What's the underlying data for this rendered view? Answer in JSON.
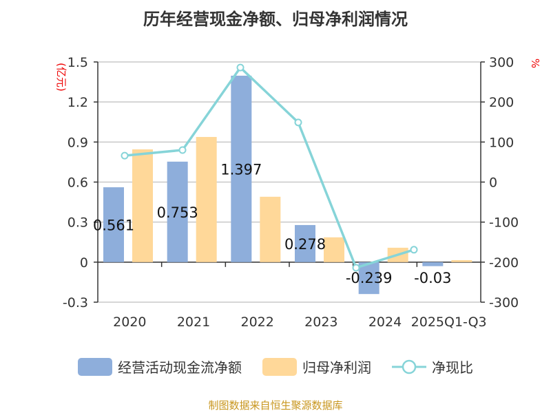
{
  "chart_data": {
    "type": "bar",
    "title": "历年经营现金净额、归母净利润情况",
    "categories": [
      "2020",
      "2021",
      "2022",
      "2023",
      "2024",
      "2025Q1-Q3"
    ],
    "left_axis": {
      "label": "(亿元)",
      "ylim": [
        -0.3,
        1.5
      ],
      "ticks": [
        "-0.3",
        "0",
        "0.3",
        "0.6",
        "0.9",
        "1.2",
        "1.5"
      ]
    },
    "right_axis": {
      "label": "%",
      "ylim": [
        -300,
        300
      ],
      "ticks": [
        "-300",
        "-200",
        "-100",
        "0",
        "100",
        "200",
        "300"
      ]
    },
    "grid": true,
    "legend_position": "bottom",
    "series": [
      {
        "name": "经营活动现金流净额",
        "type": "bar",
        "axis": "left",
        "color": "#8eaedb",
        "values": [
          0.561,
          0.753,
          1.397,
          0.278,
          -0.239,
          -0.03
        ],
        "labels": [
          "0.561",
          "0.753",
          "1.397",
          "0.278",
          "-0.239",
          "-0.03"
        ]
      },
      {
        "name": "归母净利润",
        "type": "bar",
        "axis": "left",
        "color": "#ffd899",
        "values": [
          0.845,
          0.938,
          0.49,
          0.186,
          0.108,
          0.015
        ]
      },
      {
        "name": "净现比",
        "type": "line",
        "axis": "right",
        "color": "#86d4d8",
        "values": [
          66,
          80,
          286,
          149,
          -214,
          -169
        ]
      }
    ]
  },
  "source": "制图数据来自恒生聚源数据库"
}
